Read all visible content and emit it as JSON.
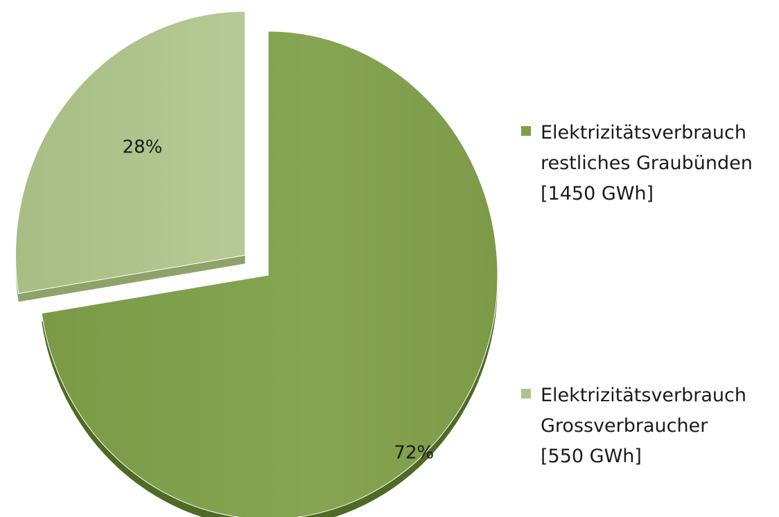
{
  "chart_data": {
    "type": "pie",
    "title": "",
    "slices": [
      {
        "label_lines": [
          "Elektrizitätsverbrauch",
          "restliches Graubünden",
          "[1450 GWh]"
        ],
        "value": 1450,
        "percent_label": "72%",
        "color": "#7f9e4a",
        "exploded": false
      },
      {
        "label_lines": [
          "Elektrizitätsverbrauch",
          "Grossverbraucher",
          "[550 GWh]"
        ],
        "value": 550,
        "percent_label": "28%",
        "color": "#aec38b",
        "exploded": true
      }
    ],
    "legend_position": "right",
    "style": "3d-exploded"
  }
}
